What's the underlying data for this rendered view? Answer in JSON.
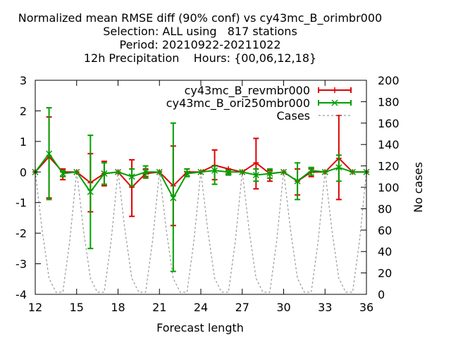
{
  "title_lines": [
    "Normalized mean RMSE diff (90% conf) vs cy43mc_B_orimbr000",
    "Selection: ALL using   817 stations",
    "Period: 20210922-20211022",
    "12h Precipitation    Hours: {00,06,12,18}"
  ],
  "chart_data": {
    "type": "line",
    "xlabel": "Forecast length",
    "ylabel": "",
    "y2label": "No cases",
    "xlim": [
      12,
      36
    ],
    "ylim": [
      -4,
      3
    ],
    "y2lim": [
      0,
      200
    ],
    "xticks": [
      12,
      15,
      18,
      21,
      24,
      27,
      30,
      33,
      36
    ],
    "yticks": [
      -4,
      -3,
      -2,
      -1,
      0,
      1,
      2,
      3
    ],
    "y2ticks": [
      0,
      20,
      40,
      60,
      80,
      100,
      120,
      140,
      160,
      180,
      200
    ],
    "legend_position": "top-right",
    "x": [
      12,
      13,
      14,
      15,
      16,
      17,
      18,
      19,
      20,
      21,
      22,
      23,
      24,
      25,
      26,
      27,
      28,
      29,
      30,
      31,
      32,
      33,
      34,
      35,
      36
    ],
    "series": [
      {
        "name": "cy43mc_B_revmbr000",
        "color": "#e00000",
        "marker": "plus",
        "values": [
          0,
          0.5,
          0,
          0,
          -0.35,
          -0.05,
          0,
          -0.5,
          -0.05,
          0,
          -0.45,
          0,
          0,
          0.22,
          0.1,
          0,
          0.3,
          -0.05,
          0,
          -0.3,
          0,
          0,
          0.45,
          0,
          0
        ],
        "err_low": [
          0,
          -0.85,
          -0.25,
          0,
          -1.3,
          -0.45,
          0,
          -1.45,
          -0.15,
          0,
          -1.75,
          0,
          0,
          -0.25,
          -0.05,
          0,
          -0.55,
          -0.3,
          0,
          -0.75,
          -0.15,
          0,
          -0.9,
          0,
          0
        ],
        "err_high": [
          0,
          1.8,
          0.1,
          0,
          0.6,
          0.35,
          0,
          0.4,
          0.1,
          0,
          0.85,
          0.1,
          0,
          0.72,
          0.1,
          0,
          1.1,
          0.05,
          0,
          0.1,
          0.1,
          0,
          1.85,
          0,
          0
        ]
      },
      {
        "name": "cy43mc_B_ori250mbr000",
        "color": "#00a000",
        "marker": "x",
        "values": [
          0,
          0.6,
          -0.05,
          0,
          -0.65,
          -0.05,
          0,
          -0.15,
          0,
          0,
          -0.85,
          -0.05,
          0,
          0.05,
          0,
          0,
          -0.1,
          -0.05,
          0,
          -0.3,
          0.05,
          0,
          0.15,
          0,
          0
        ],
        "err_low": [
          0,
          -0.9,
          -0.15,
          0,
          -2.5,
          -0.4,
          0,
          -0.45,
          -0.2,
          0,
          -3.25,
          -0.15,
          0,
          -0.4,
          -0.1,
          0,
          -0.3,
          -0.2,
          0,
          -0.9,
          -0.1,
          0,
          -0.3,
          0,
          0
        ],
        "err_high": [
          0,
          2.1,
          0.05,
          0,
          1.2,
          0.3,
          0,
          0.1,
          0.2,
          0,
          1.6,
          0.1,
          0,
          0.2,
          0.05,
          0,
          0.1,
          0.1,
          0,
          0.3,
          0.15,
          0,
          0.55,
          0,
          0
        ]
      }
    ],
    "cases": {
      "name": "Cases",
      "color": "#999999",
      "axis": "y2",
      "x": [
        12,
        12.5,
        13,
        13.5,
        14,
        14.5,
        15,
        15.5,
        16,
        16.5,
        17,
        17.5,
        18,
        18.5,
        19,
        19.5,
        20,
        20.5,
        21,
        21.5,
        22,
        22.5,
        23,
        23.5,
        24,
        24.5,
        25,
        25.5,
        26,
        26.5,
        27,
        27.5,
        28,
        28.5,
        29,
        29.5,
        30,
        30.5,
        31,
        31.5,
        32,
        32.5,
        33,
        33.5,
        34,
        34.5,
        35,
        35.5,
        36
      ],
      "values": [
        115,
        60,
        15,
        2,
        2,
        50,
        115,
        60,
        15,
        2,
        2,
        50,
        115,
        60,
        15,
        2,
        2,
        50,
        115,
        60,
        15,
        2,
        2,
        50,
        115,
        60,
        15,
        2,
        2,
        50,
        115,
        60,
        15,
        2,
        2,
        50,
        115,
        60,
        15,
        2,
        2,
        50,
        115,
        60,
        15,
        2,
        2,
        50,
        115
      ]
    }
  }
}
